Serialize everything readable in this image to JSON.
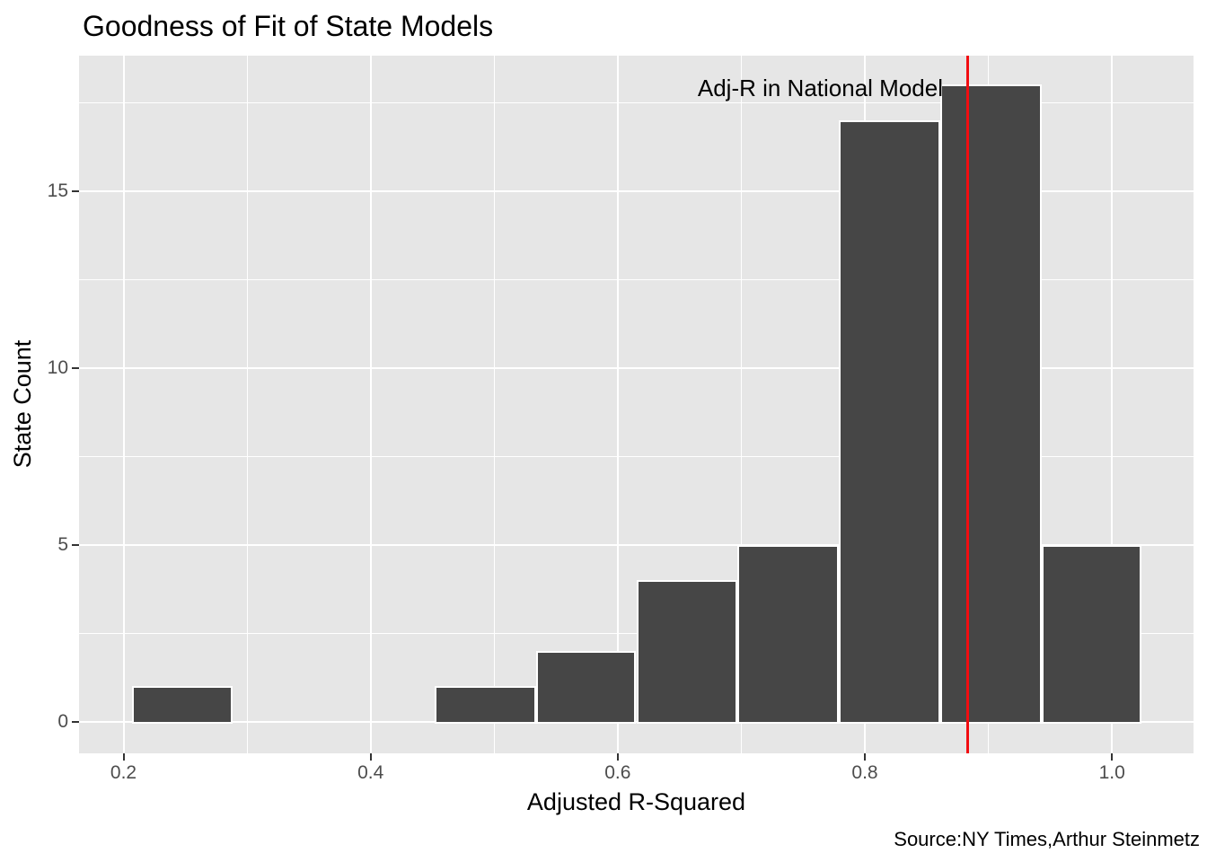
{
  "title": "Goodness of Fit of State Models",
  "source": "Source:NY Times,Arthur Steinmetz",
  "chart_data": {
    "type": "bar",
    "subtype": "histogram",
    "title": "Goodness of Fit of State Models",
    "xlabel": "Adjusted R-Squared",
    "ylabel": "State Count",
    "x_ticks": [
      0.2,
      0.4,
      0.6,
      0.8,
      1.0
    ],
    "x_tick_labels": [
      "0.2",
      "0.4",
      "0.6",
      "0.8",
      "1.0"
    ],
    "x_minor_ticks": [
      0.3,
      0.5,
      0.7,
      0.9
    ],
    "y_ticks": [
      0,
      5,
      10,
      15
    ],
    "y_tick_labels": [
      "0",
      "5",
      "10",
      "15"
    ],
    "y_minor_ticks": [
      2.5,
      7.5,
      12.5,
      17.5
    ],
    "xlim": [
      0.164,
      1.066
    ],
    "ylim": [
      -0.9,
      18.82
    ],
    "grid": true,
    "legend": false,
    "bin_width": 0.0818,
    "bins": [
      {
        "x0": 0.207,
        "x1": 0.288,
        "count": 1
      },
      {
        "x0": 0.288,
        "x1": 0.37,
        "count": 0
      },
      {
        "x0": 0.37,
        "x1": 0.452,
        "count": 0
      },
      {
        "x0": 0.452,
        "x1": 0.534,
        "count": 1
      },
      {
        "x0": 0.534,
        "x1": 0.615,
        "count": 2
      },
      {
        "x0": 0.615,
        "x1": 0.697,
        "count": 4
      },
      {
        "x0": 0.697,
        "x1": 0.779,
        "count": 5
      },
      {
        "x0": 0.779,
        "x1": 0.861,
        "count": 17
      },
      {
        "x0": 0.861,
        "x1": 0.943,
        "count": 18
      },
      {
        "x0": 0.943,
        "x1": 1.024,
        "count": 5
      }
    ],
    "vline": {
      "x": 0.883,
      "label": "Adj-R in National Model",
      "color": "#F20D11"
    },
    "colors": {
      "bar_fill": "#464646",
      "bar_border": "#FFFFFF",
      "panel_bg": "#E6E6E6",
      "grid": "#FFFFFF",
      "tick_mark": "#333333",
      "tick_label": "#4D4D4D",
      "text": "#000000"
    }
  }
}
